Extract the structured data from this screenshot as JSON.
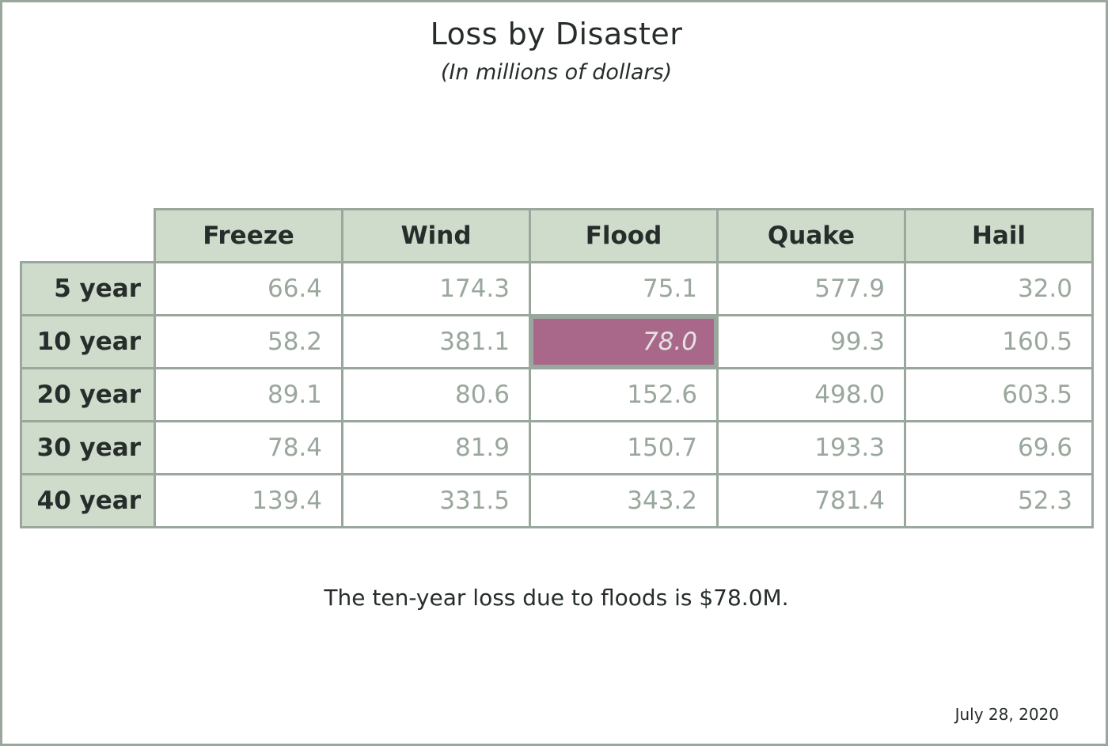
{
  "title": "Loss by Disaster",
  "subtitle": "(In millions of dollars)",
  "caption": "The ten-year loss due to floods is $78.0M.",
  "date": "July 28, 2020",
  "colors": {
    "header_fill": "#cfdccc",
    "border": "#9aa79c",
    "value_text": "#9aa79c",
    "highlight_fill": "#a9688a",
    "label_text": "#262d2b"
  },
  "chart_data": {
    "type": "table",
    "title": "Loss by Disaster",
    "subtitle": "(In millions of dollars)",
    "columns": [
      "Freeze",
      "Wind",
      "Flood",
      "Quake",
      "Hail"
    ],
    "rows": [
      {
        "label": "5 year",
        "values": [
          "66.4",
          "174.3",
          "75.1",
          "577.9",
          "32.0"
        ]
      },
      {
        "label": "10 year",
        "values": [
          "58.2",
          "381.1",
          "78.0",
          "99.3",
          "160.5"
        ]
      },
      {
        "label": "20 year",
        "values": [
          "89.1",
          "80.6",
          "152.6",
          "498.0",
          "603.5"
        ]
      },
      {
        "label": "30 year",
        "values": [
          "78.4",
          "81.9",
          "150.7",
          "193.3",
          "69.6"
        ]
      },
      {
        "label": "40 year",
        "values": [
          "139.4",
          "331.5",
          "343.2",
          "781.4",
          "52.3"
        ]
      }
    ],
    "highlight": {
      "row": 1,
      "col": 2
    }
  }
}
